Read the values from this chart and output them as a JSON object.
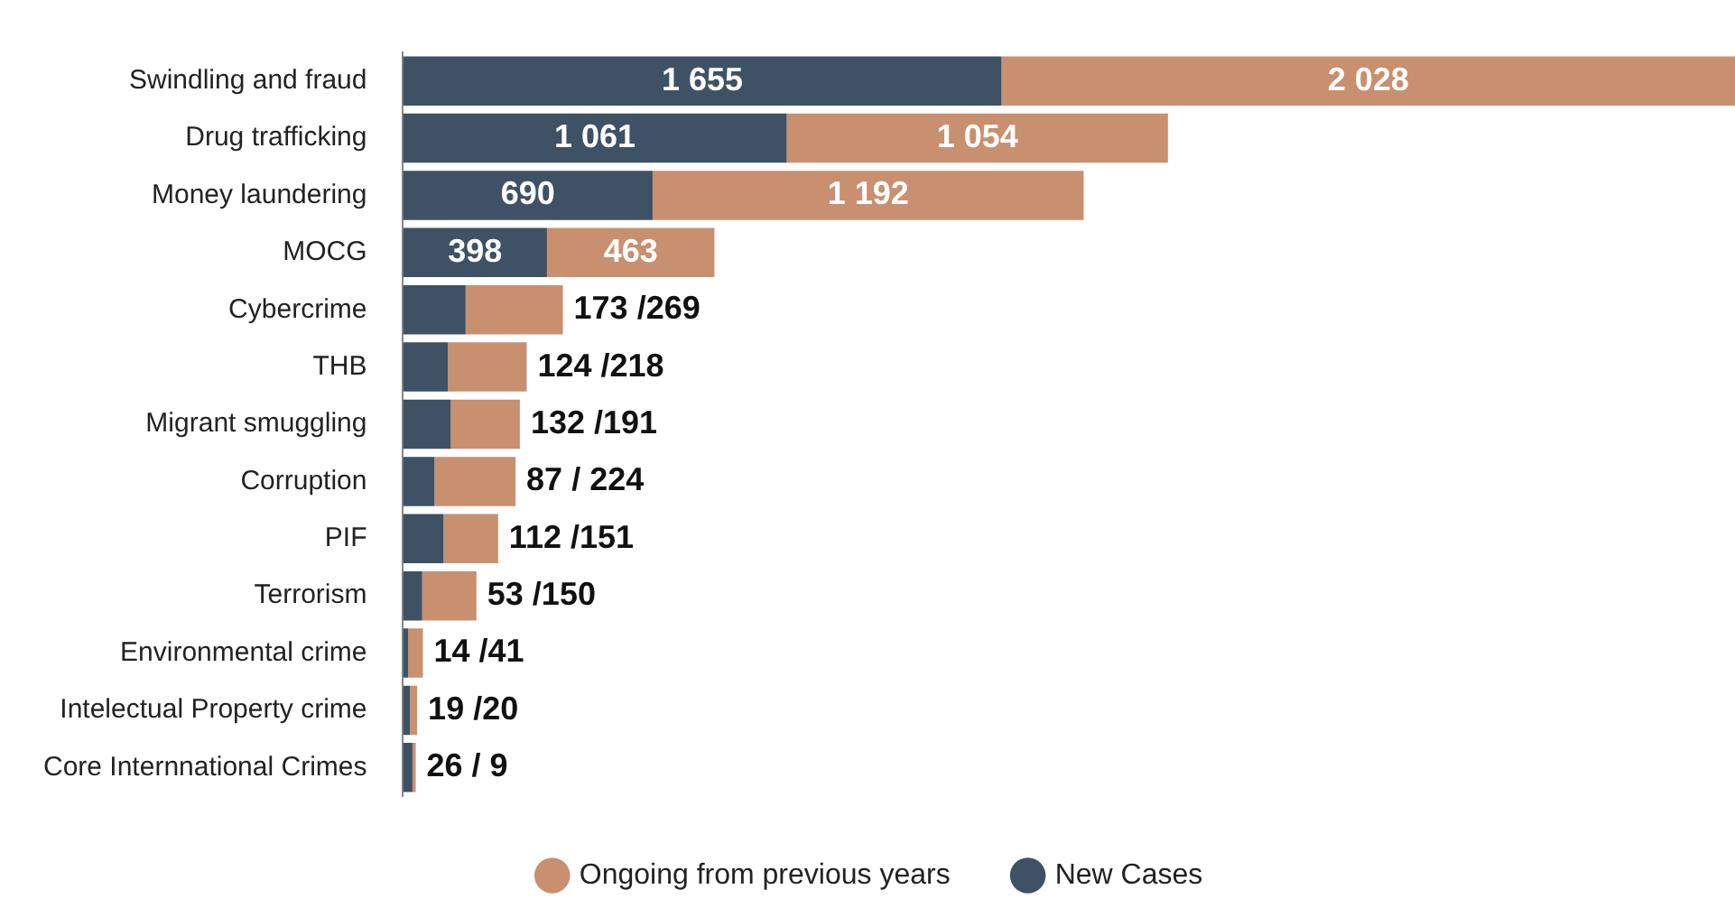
{
  "chart_data": {
    "type": "bar",
    "orientation": "horizontal",
    "stacked": true,
    "legend": "bottom",
    "grid": false,
    "tick_labels": "y",
    "xlim": [
      0,
      3683
    ],
    "categories": [
      "Swindling and fraud",
      "Drug trafficking",
      "Money laundering",
      "MOCG",
      "Cybercrime",
      "THB",
      "Migrant smuggling",
      "Corruption",
      "PIF",
      "Terrorism",
      "Environmental crime",
      "Intelectual Property crime",
      "Core Internnational Crimes"
    ],
    "series": [
      {
        "name": "New Cases",
        "color": "#3e5165",
        "values": [
          1655,
          1061,
          690,
          398,
          173,
          124,
          132,
          87,
          112,
          53,
          14,
          19,
          26
        ],
        "value_labels": [
          "1 655",
          "1 061",
          "690",
          "398",
          null,
          null,
          null,
          null,
          null,
          null,
          null,
          null,
          null
        ]
      },
      {
        "name": "Ongoing from previous years",
        "color": "#c8906f",
        "values": [
          2028,
          1054,
          1192,
          463,
          269,
          218,
          191,
          224,
          151,
          150,
          41,
          20,
          9
        ],
        "value_labels": [
          "2 028",
          "1 054",
          "1 192",
          "463",
          null,
          null,
          null,
          null,
          null,
          null,
          null,
          null,
          null
        ]
      }
    ],
    "annotations": [
      {
        "text": "173 /269",
        "x": 442,
        "y": "Cybercrime"
      },
      {
        "text": "124 /218",
        "x": 342,
        "y": "THB"
      },
      {
        "text": "132 /191",
        "x": 323,
        "y": "Migrant smuggling"
      },
      {
        "text": "87 / 224",
        "x": 311,
        "y": "Corruption"
      },
      {
        "text": "112 /151",
        "x": 263,
        "y": "PIF"
      },
      {
        "text": "53 /150",
        "x": 203,
        "y": "Terrorism"
      },
      {
        "text": "14 /41",
        "x": 55,
        "y": "Environmental crime"
      },
      {
        "text": "19 /20",
        "x": 39,
        "y": "Intelectual Property crime"
      },
      {
        "text": "26 / 9",
        "x": 35,
        "y": "Core Internnational Crimes"
      }
    ]
  }
}
